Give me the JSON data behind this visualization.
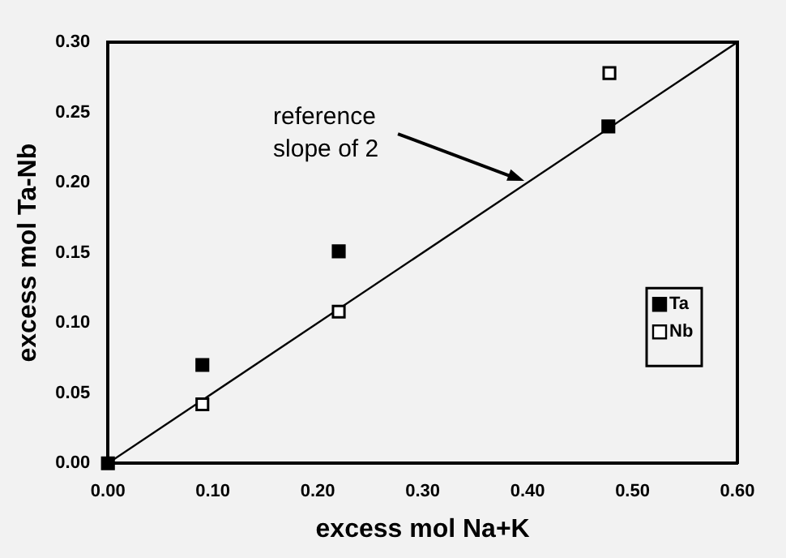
{
  "chart_data": {
    "type": "scatter",
    "xlabel": "excess mol Na+K",
    "ylabel": "excess mol Ta-Nb",
    "series": [
      {
        "name": "Ta",
        "color": "#000000",
        "x": [
          0,
          0.09,
          0.22,
          0.477
        ],
        "values": [
          0,
          0.07,
          0.151,
          0.24
        ],
        "marker": "square"
      },
      {
        "name": "Nb",
        "color": "#000000",
        "x": [
          0.09,
          0.22,
          0.478
        ],
        "values": [
          0.042,
          0.108,
          0.278
        ],
        "marker": "square"
      },
      {
        "type": "line",
        "color": "#000000",
        "x": [
          0,
          0.6
        ],
        "values": [
          0,
          0.3
        ],
        "marker": "none"
      }
    ],
    "annotations": [
      {
        "text": "reference\nslope of 2",
        "x": 0.4,
        "y": 0.2
      }
    ],
    "xlim": [
      0,
      0.6
    ],
    "ylim": [
      0,
      0.3
    ],
    "xticks": [
      {
        "value": 0,
        "label": "0.00"
      },
      {
        "value": 0.1,
        "label": "0.10"
      },
      {
        "value": 0.2,
        "label": "0.20"
      },
      {
        "value": 0.3,
        "label": "0.30"
      },
      {
        "value": 0.4,
        "label": "0.40"
      },
      {
        "value": 0.5,
        "label": "0.50"
      },
      {
        "value": 0.6,
        "label": "0.60"
      }
    ],
    "yticks": [
      {
        "value": 0,
        "label": "0.00"
      },
      {
        "value": 0.05,
        "label": "0.05"
      },
      {
        "value": 0.1,
        "label": "0.10"
      },
      {
        "value": 0.15,
        "label": "0.15"
      },
      {
        "value": 0.2,
        "label": "0.20"
      },
      {
        "value": 0.25,
        "label": "0.25"
      },
      {
        "value": 0.3,
        "label": "0.30"
      }
    ],
    "grid": false,
    "legend": "bottom right"
  }
}
